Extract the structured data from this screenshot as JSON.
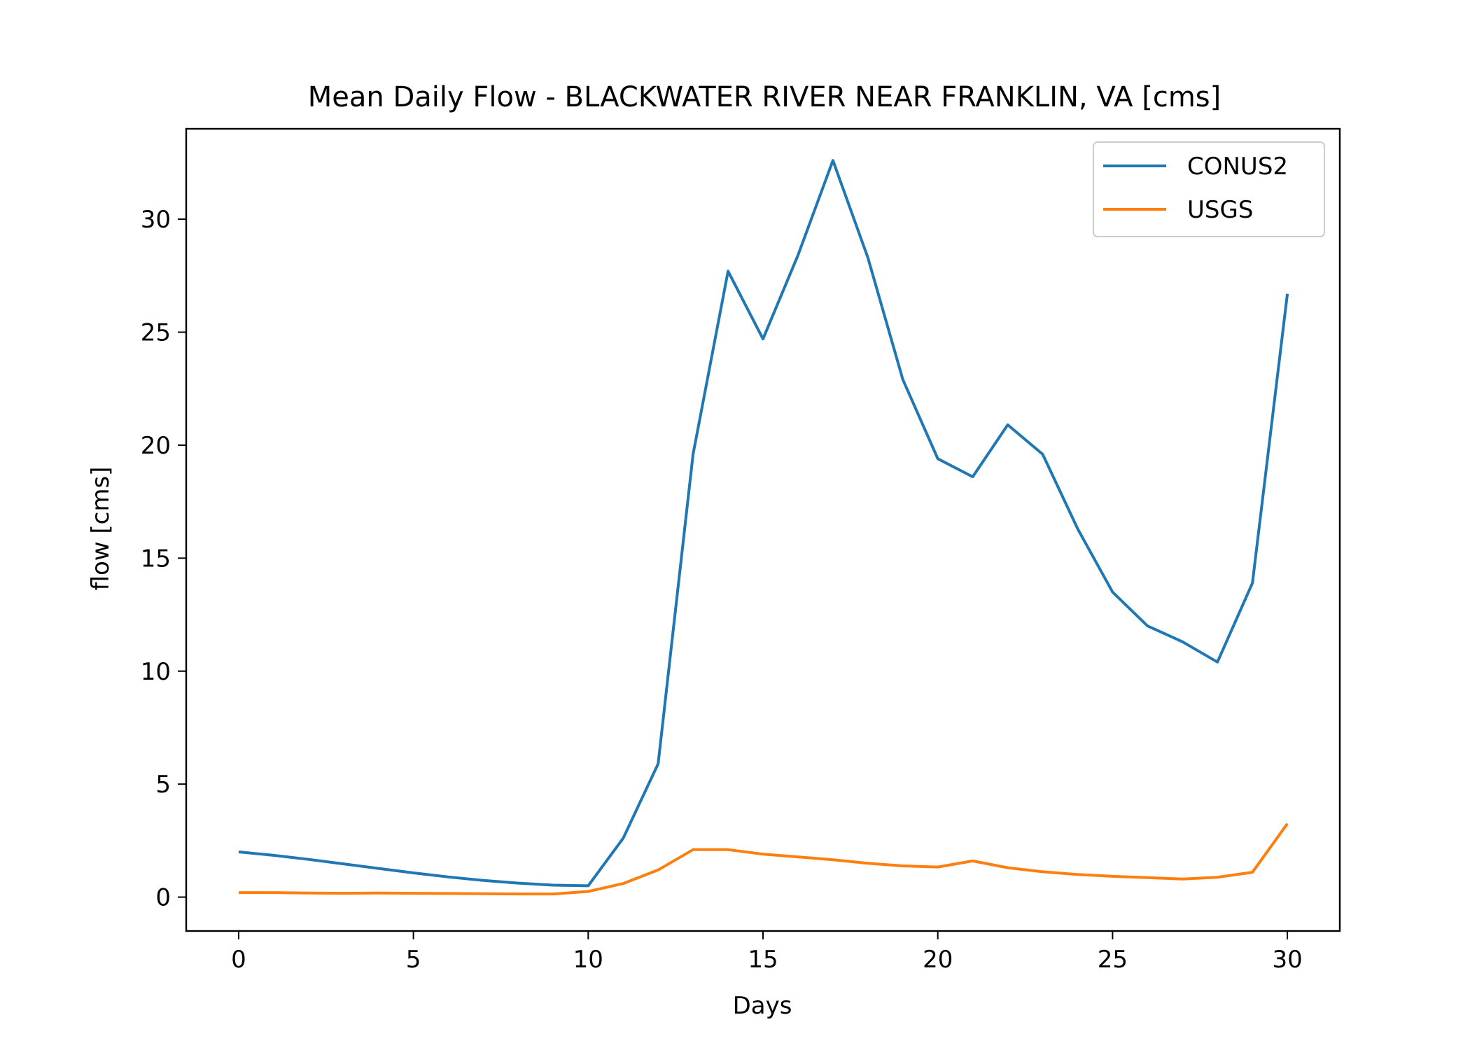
{
  "chart_data": {
    "type": "line",
    "title": "Mean Daily Flow - BLACKWATER RIVER NEAR FRANKLIN, VA [cms]",
    "xlabel": "Days",
    "ylabel": "flow [cms]",
    "xlim": [
      -1.5,
      31.5
    ],
    "ylim": [
      -1.5,
      34
    ],
    "xticks": [
      0,
      5,
      10,
      15,
      20,
      25,
      30
    ],
    "yticks": [
      0,
      5,
      10,
      15,
      20,
      25,
      30
    ],
    "grid": false,
    "legend_position": "top-right",
    "x": [
      0,
      1,
      2,
      3,
      4,
      5,
      6,
      7,
      8,
      9,
      10,
      11,
      12,
      13,
      14,
      15,
      16,
      17,
      18,
      19,
      20,
      21,
      22,
      23,
      24,
      25,
      26,
      27,
      28,
      29,
      30
    ],
    "series": [
      {
        "name": "CONUS2",
        "color": "#1f77b4",
        "values": [
          2.0,
          1.85,
          1.67,
          1.47,
          1.27,
          1.07,
          0.89,
          0.74,
          0.62,
          0.53,
          0.5,
          2.6,
          5.9,
          19.6,
          27.7,
          24.7,
          28.4,
          32.6,
          28.3,
          22.9,
          19.4,
          18.6,
          20.9,
          19.6,
          16.3,
          13.5,
          12.0,
          11.3,
          10.4,
          13.9,
          26.7
        ]
      },
      {
        "name": "USGS",
        "color": "#ff7f0e",
        "values": [
          0.2,
          0.2,
          0.18,
          0.17,
          0.18,
          0.17,
          0.16,
          0.15,
          0.14,
          0.14,
          0.25,
          0.6,
          1.2,
          2.1,
          2.1,
          1.9,
          1.78,
          1.65,
          1.5,
          1.38,
          1.33,
          1.6,
          1.3,
          1.12,
          1.0,
          0.92,
          0.86,
          0.8,
          0.88,
          1.1,
          3.25
        ]
      }
    ]
  }
}
